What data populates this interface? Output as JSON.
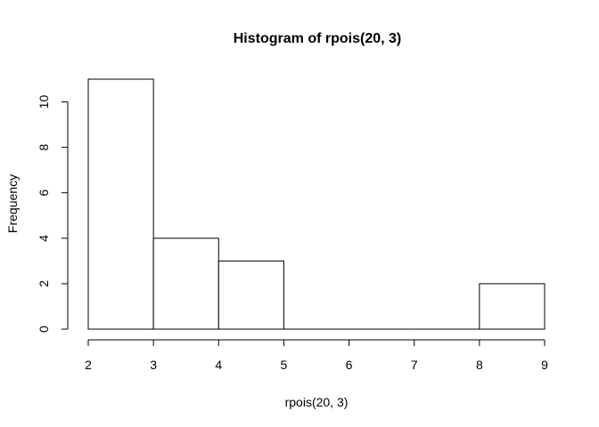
{
  "chart_data": {
    "type": "bar",
    "title": "Histogram of rpois(20, 3)",
    "xlabel": "rpois(20, 3)",
    "ylabel": "Frequency",
    "bins": [
      {
        "from": 2,
        "to": 3,
        "count": 11
      },
      {
        "from": 3,
        "to": 4,
        "count": 4
      },
      {
        "from": 4,
        "to": 5,
        "count": 3
      },
      {
        "from": 5,
        "to": 6,
        "count": 0
      },
      {
        "from": 6,
        "to": 7,
        "count": 0
      },
      {
        "from": 7,
        "to": 8,
        "count": 0
      },
      {
        "from": 8,
        "to": 9,
        "count": 2
      }
    ],
    "xlim": [
      2,
      9
    ],
    "ylim": [
      0,
      11
    ],
    "x_ticks": [
      "2",
      "3",
      "4",
      "5",
      "6",
      "7",
      "8",
      "9"
    ],
    "y_ticks": [
      "0",
      "2",
      "4",
      "6",
      "8",
      "10"
    ],
    "grid": false,
    "bar_fill": "#ffffff",
    "bar_stroke": "#000000"
  }
}
